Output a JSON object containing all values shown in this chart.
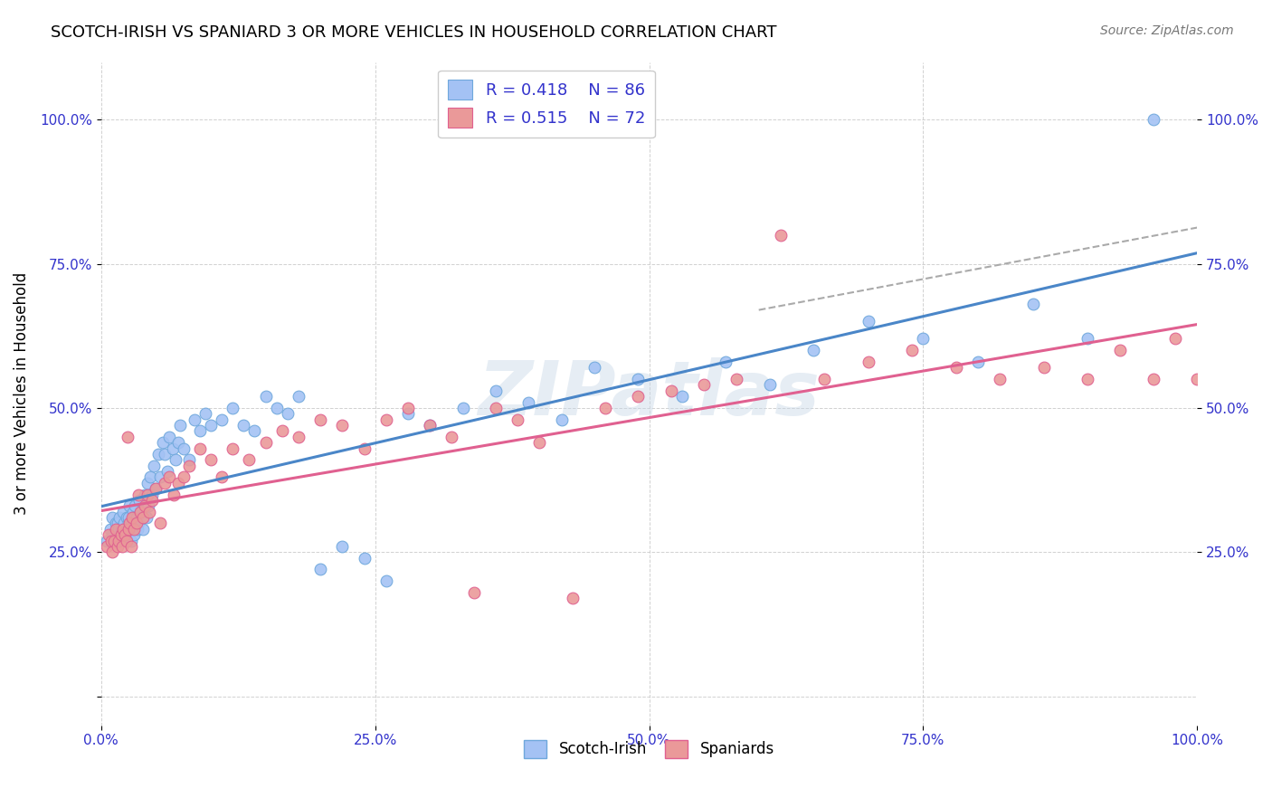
{
  "title": "SCOTCH-IRISH VS SPANIARD 3 OR MORE VEHICLES IN HOUSEHOLD CORRELATION CHART",
  "source": "Source: ZipAtlas.com",
  "ylabel": "3 or more Vehicles in Household",
  "xlim": [
    0.0,
    1.0
  ],
  "ylim": [
    -0.05,
    1.1
  ],
  "scotch_irish_color": "#a4c2f4",
  "scotch_irish_edge_color": "#6fa8dc",
  "spaniard_color": "#ea9999",
  "spaniard_edge_color": "#e06090",
  "scotch_irish_line_color": "#4a86c8",
  "spaniard_line_color": "#e06090",
  "diagonal_line_color": "#aaaaaa",
  "scotch_r": 0.418,
  "scotch_n": 86,
  "spaniard_r": 0.515,
  "spaniard_n": 72,
  "watermark": "ZIPatlas",
  "scotch_irish_x": [
    0.005,
    0.008,
    0.01,
    0.01,
    0.012,
    0.013,
    0.015,
    0.015,
    0.016,
    0.017,
    0.018,
    0.02,
    0.02,
    0.021,
    0.022,
    0.023,
    0.024,
    0.025,
    0.025,
    0.026,
    0.027,
    0.028,
    0.029,
    0.03,
    0.03,
    0.031,
    0.032,
    0.033,
    0.034,
    0.035,
    0.036,
    0.038,
    0.04,
    0.041,
    0.042,
    0.043,
    0.045,
    0.046,
    0.048,
    0.05,
    0.052,
    0.054,
    0.056,
    0.058,
    0.06,
    0.062,
    0.065,
    0.068,
    0.07,
    0.072,
    0.075,
    0.08,
    0.085,
    0.09,
    0.095,
    0.1,
    0.11,
    0.12,
    0.13,
    0.14,
    0.15,
    0.16,
    0.17,
    0.18,
    0.2,
    0.22,
    0.24,
    0.26,
    0.28,
    0.3,
    0.33,
    0.36,
    0.39,
    0.42,
    0.45,
    0.49,
    0.53,
    0.57,
    0.61,
    0.65,
    0.7,
    0.75,
    0.8,
    0.85,
    0.9,
    0.96
  ],
  "scotch_irish_y": [
    0.27,
    0.29,
    0.28,
    0.31,
    0.28,
    0.3,
    0.27,
    0.3,
    0.29,
    0.31,
    0.29,
    0.28,
    0.32,
    0.3,
    0.28,
    0.31,
    0.29,
    0.3,
    0.31,
    0.33,
    0.27,
    0.3,
    0.32,
    0.31,
    0.28,
    0.33,
    0.31,
    0.29,
    0.3,
    0.34,
    0.32,
    0.29,
    0.35,
    0.31,
    0.37,
    0.33,
    0.38,
    0.35,
    0.4,
    0.36,
    0.42,
    0.38,
    0.44,
    0.42,
    0.39,
    0.45,
    0.43,
    0.41,
    0.44,
    0.47,
    0.43,
    0.41,
    0.48,
    0.46,
    0.49,
    0.47,
    0.48,
    0.5,
    0.47,
    0.46,
    0.52,
    0.5,
    0.49,
    0.52,
    0.22,
    0.26,
    0.24,
    0.2,
    0.49,
    0.47,
    0.5,
    0.53,
    0.51,
    0.48,
    0.57,
    0.55,
    0.52,
    0.58,
    0.54,
    0.6,
    0.65,
    0.62,
    0.58,
    0.68,
    0.62,
    1.0
  ],
  "spaniard_x": [
    0.005,
    0.007,
    0.009,
    0.01,
    0.012,
    0.013,
    0.015,
    0.016,
    0.018,
    0.019,
    0.02,
    0.022,
    0.023,
    0.024,
    0.025,
    0.026,
    0.027,
    0.028,
    0.03,
    0.032,
    0.034,
    0.036,
    0.038,
    0.04,
    0.042,
    0.044,
    0.046,
    0.05,
    0.054,
    0.058,
    0.062,
    0.066,
    0.07,
    0.075,
    0.08,
    0.09,
    0.1,
    0.11,
    0.12,
    0.135,
    0.15,
    0.165,
    0.18,
    0.2,
    0.22,
    0.24,
    0.26,
    0.28,
    0.3,
    0.32,
    0.34,
    0.36,
    0.38,
    0.4,
    0.43,
    0.46,
    0.49,
    0.52,
    0.55,
    0.58,
    0.62,
    0.66,
    0.7,
    0.74,
    0.78,
    0.82,
    0.86,
    0.9,
    0.93,
    0.96,
    0.98,
    1.0
  ],
  "spaniard_y": [
    0.26,
    0.28,
    0.27,
    0.25,
    0.27,
    0.29,
    0.26,
    0.27,
    0.28,
    0.26,
    0.29,
    0.28,
    0.27,
    0.45,
    0.29,
    0.3,
    0.26,
    0.31,
    0.29,
    0.3,
    0.35,
    0.32,
    0.31,
    0.33,
    0.35,
    0.32,
    0.34,
    0.36,
    0.3,
    0.37,
    0.38,
    0.35,
    0.37,
    0.38,
    0.4,
    0.43,
    0.41,
    0.38,
    0.43,
    0.41,
    0.44,
    0.46,
    0.45,
    0.48,
    0.47,
    0.43,
    0.48,
    0.5,
    0.47,
    0.45,
    0.18,
    0.5,
    0.48,
    0.44,
    0.17,
    0.5,
    0.52,
    0.53,
    0.54,
    0.55,
    0.8,
    0.55,
    0.58,
    0.6,
    0.57,
    0.55,
    0.57,
    0.55,
    0.6,
    0.55,
    0.62,
    0.55
  ]
}
